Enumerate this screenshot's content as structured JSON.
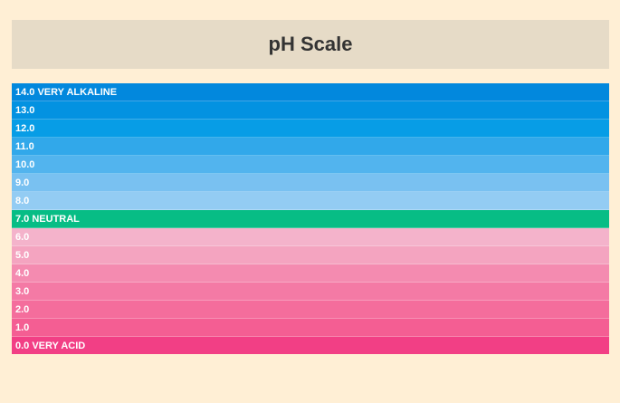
{
  "title": "pH Scale",
  "levels": [
    {
      "label": "14.0 VERY ALKALINE",
      "color": "#0288dd"
    },
    {
      "label": "13.0",
      "color": "#0392e1"
    },
    {
      "label": "12.0",
      "color": "#079de6"
    },
    {
      "label": "11.0",
      "color": "#31a8ea"
    },
    {
      "label": "10.0",
      "color": "#52b4ee"
    },
    {
      "label": "9.0",
      "color": "#79c1f1"
    },
    {
      "label": "8.0",
      "color": "#93ccf3"
    },
    {
      "label": "7.0 NEUTRAL",
      "color": "#07bd85"
    },
    {
      "label": "6.0",
      "color": "#f4b3cb"
    },
    {
      "label": "5.0",
      "color": "#f4a4c0"
    },
    {
      "label": "4.0",
      "color": "#f48bb0"
    },
    {
      "label": "3.0",
      "color": "#f47aa5"
    },
    {
      "label": "2.0",
      "color": "#f46d9c"
    },
    {
      "label": "1.0",
      "color": "#f45e93"
    },
    {
      "label": "0.0 VERY ACID",
      "color": "#f23f85"
    }
  ]
}
